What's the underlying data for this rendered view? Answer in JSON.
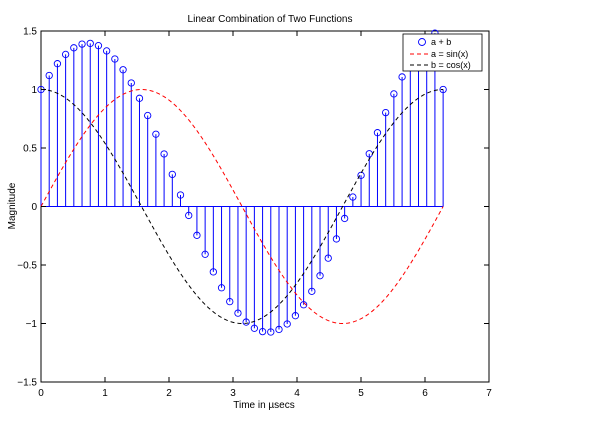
{
  "chart_data": {
    "type": "line",
    "title": "Linear Combination of Two Functions",
    "xlabel": "Time in µsecs",
    "ylabel": "Magnitude",
    "xlim": [
      0,
      7
    ],
    "ylim": [
      -1.5,
      1.5
    ],
    "xticks": [
      0,
      1,
      2,
      3,
      4,
      5,
      6,
      7
    ],
    "xtick_labels": [
      "0",
      "1",
      "2",
      "3",
      "4",
      "5",
      "6",
      "7"
    ],
    "yticks": [
      -1.5,
      -1,
      -0.5,
      0,
      0.5,
      1,
      1.5
    ],
    "ytick_labels": [
      "−1.5",
      "−1",
      "−0.5",
      "0",
      "0.5",
      "1",
      "1.5"
    ],
    "grid": false,
    "legend_position": "top-right",
    "x": [
      0,
      0.1282,
      0.2565,
      0.3847,
      0.5129,
      0.6411,
      0.7694,
      0.8976,
      1.0258,
      1.1541,
      1.2823,
      1.4105,
      1.5387,
      1.667,
      1.7952,
      1.9234,
      2.0517,
      2.1799,
      2.3081,
      2.4363,
      2.5646,
      2.6928,
      2.821,
      2.9493,
      3.0775,
      3.2057,
      3.3339,
      3.4622,
      3.5904,
      3.7186,
      3.8468,
      3.9751,
      4.1033,
      4.2315,
      4.3598,
      4.488,
      4.6162,
      4.7444,
      4.8727,
      5.0009,
      5.1291,
      5.2574,
      5.3856,
      5.5138,
      5.642,
      5.7703,
      5.8985,
      6.0267,
      6.155,
      6.2832
    ],
    "series": [
      {
        "name": "a + b",
        "style": "stem",
        "marker": "circle",
        "color": "#0000ff",
        "values": [
          1.0,
          1.1197,
          1.2205,
          1.3,
          1.3563,
          1.3879,
          1.3941,
          1.3746,
          1.3298,
          1.2607,
          1.1687,
          1.0558,
          0.9245,
          0.7774,
          0.6178,
          0.449,
          0.2746,
          0.0983,
          -0.0763,
          -0.2464,
          -0.4084,
          -0.5589,
          -0.6947,
          -0.813,
          -0.9114,
          -0.9879,
          -1.0409,
          -1.0693,
          -1.0727,
          -1.0508,
          -1.0041,
          -0.9334,
          -0.8398,
          -0.7252,
          -0.5916,
          -0.4413,
          -0.2771,
          -0.1021,
          0.0807,
          0.2662,
          0.4508,
          0.6308,
          0.8025,
          0.9624,
          1.1072,
          1.234,
          1.3402,
          1.4234,
          1.4818,
          1.0
        ]
      },
      {
        "name": "a = sin(x)",
        "style": "dashed",
        "color": "#ff0000",
        "function": "sin"
      },
      {
        "name": "b = cos(x)",
        "style": "dashed",
        "color": "#000000",
        "function": "cos"
      }
    ],
    "legend": [
      "a + b",
      "a = sin(x)",
      "b = cos(x)"
    ]
  }
}
